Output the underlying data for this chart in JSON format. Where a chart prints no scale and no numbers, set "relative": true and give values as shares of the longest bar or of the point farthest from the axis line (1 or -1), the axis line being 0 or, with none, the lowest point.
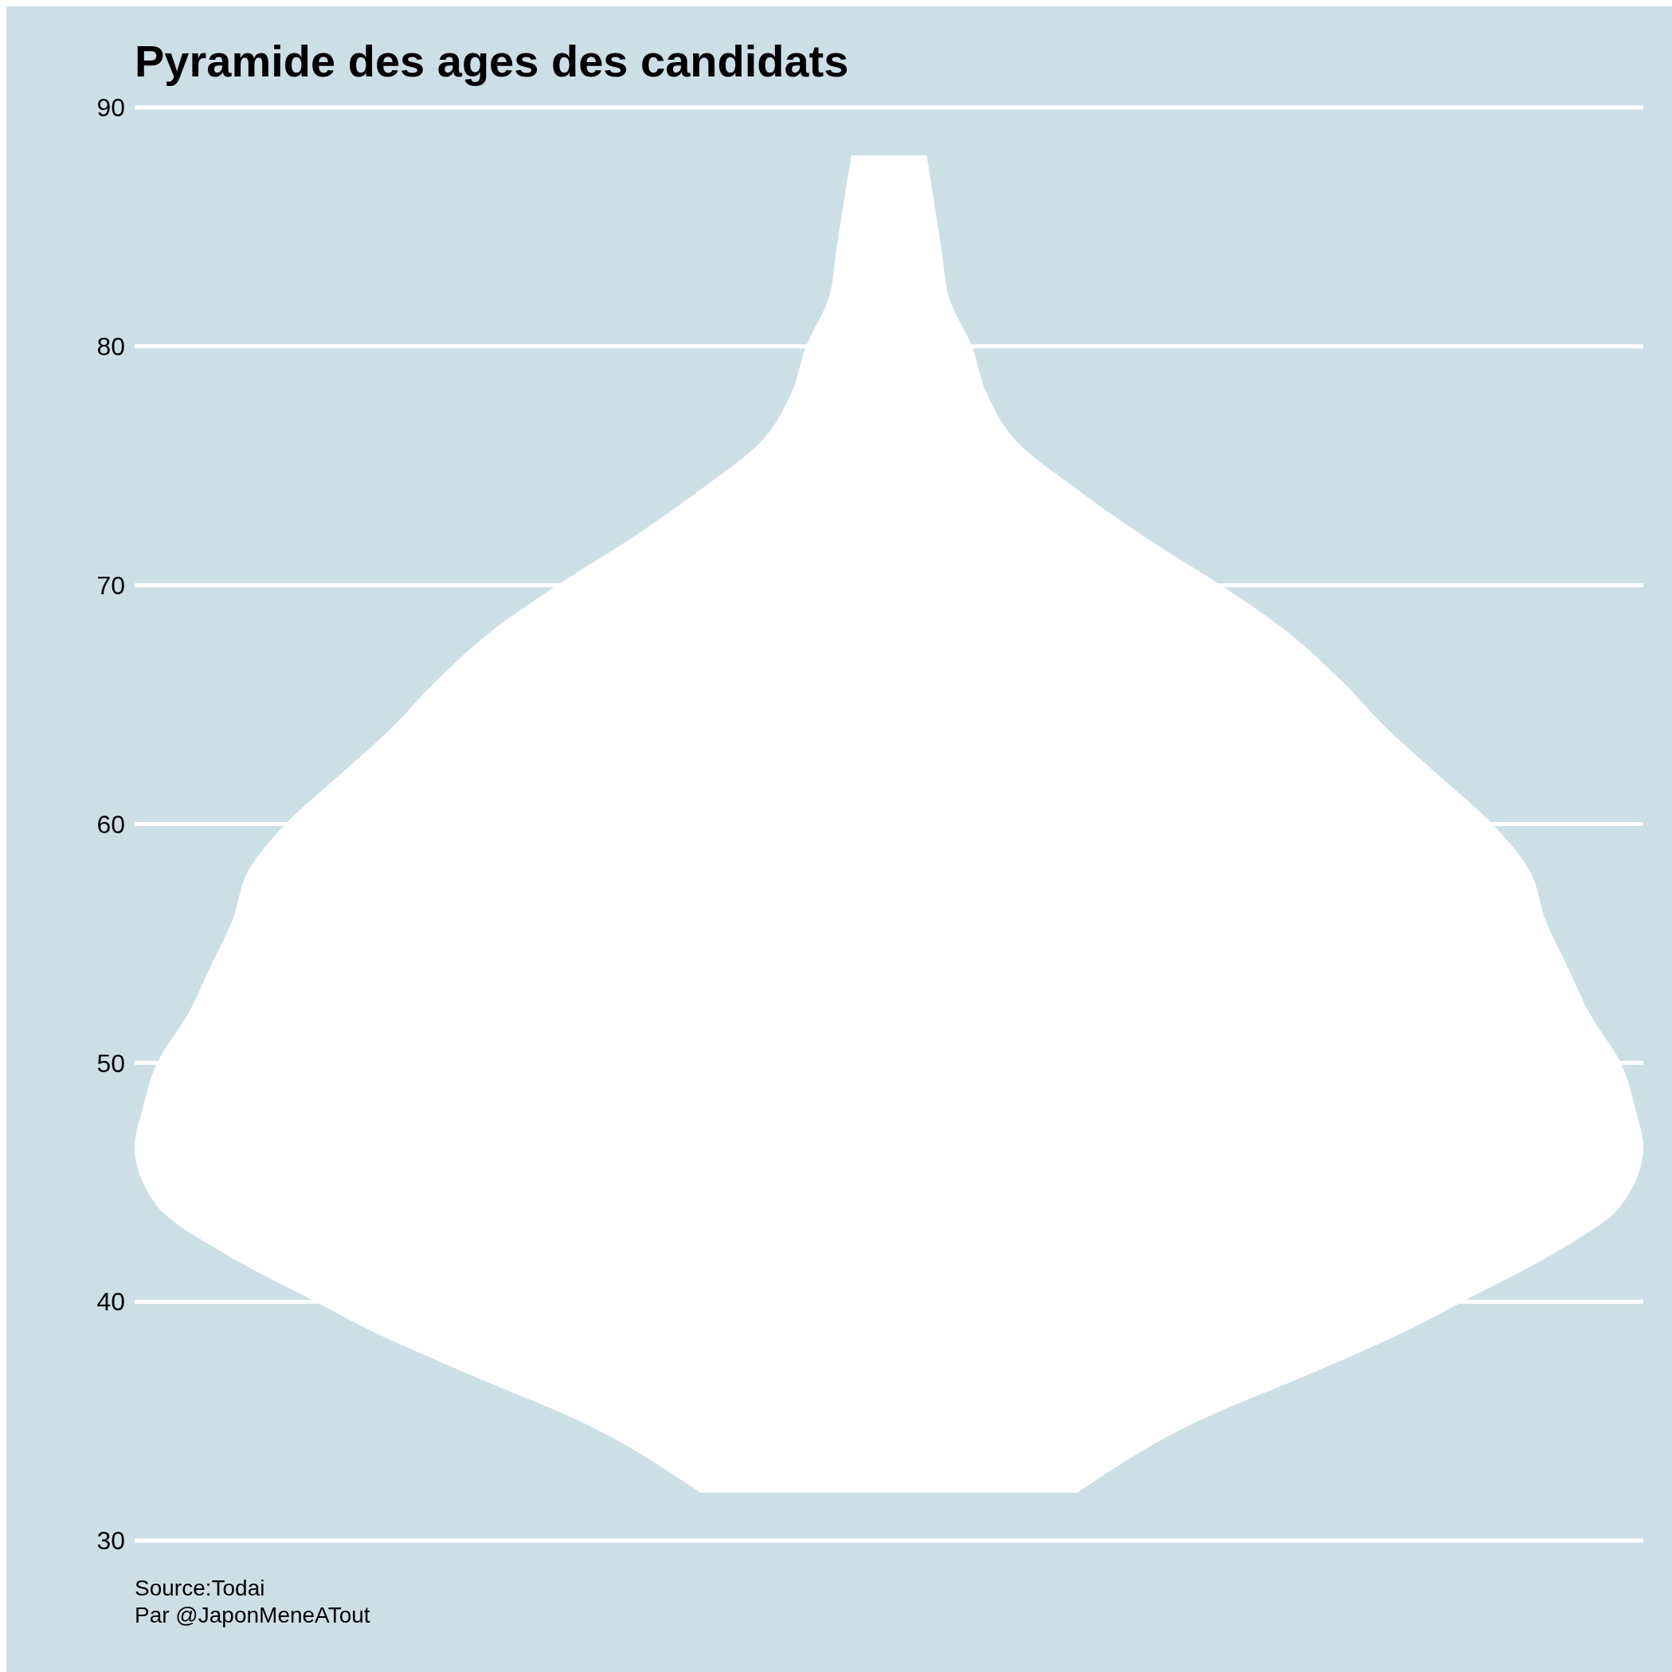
{
  "chart_data": {
    "type": "area",
    "orientation": "horizontal",
    "relative": true,
    "title": "Pyramide des ages des candidats",
    "annotations": [
      "Source:Todai",
      "Par @JaponMeneATout"
    ],
    "x": [
      32,
      35,
      37,
      39,
      40,
      42,
      44,
      46.5,
      48,
      50,
      52,
      54,
      56,
      58,
      60,
      62,
      64,
      66,
      68,
      70,
      72,
      74,
      76,
      78,
      80,
      82,
      84,
      86,
      88
    ],
    "values": [
      0.25,
      0.41,
      0.56,
      0.7,
      0.76,
      0.88,
      0.97,
      1,
      0.99,
      0.97,
      0.93,
      0.9,
      0.87,
      0.85,
      0.8,
      0.73,
      0.66,
      0.6,
      0.53,
      0.44,
      0.34,
      0.25,
      0.17,
      0.13,
      0.11,
      0.08,
      0.07,
      0.06,
      0.05
    ],
    "color": "#ffffff",
    "ylim": [
      30,
      90
    ],
    "yticks": [
      30,
      40,
      50,
      60,
      70,
      80,
      90
    ],
    "grid": "y",
    "tick_labels": "y"
  }
}
